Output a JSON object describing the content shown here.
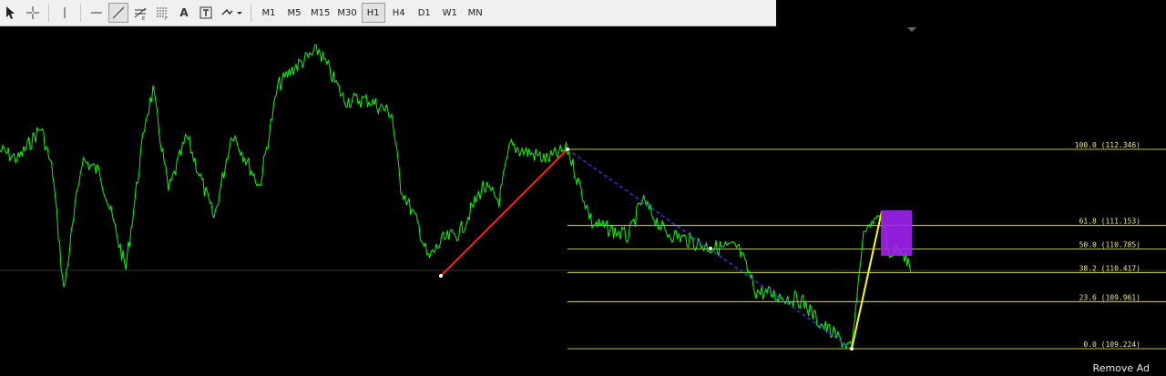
{
  "toolbar": {
    "tools": [
      {
        "name": "cursor-arrow-icon"
      },
      {
        "name": "crosshair-icon"
      },
      {
        "name": "vertical-line-icon"
      },
      {
        "name": "horizontal-line-icon"
      },
      {
        "name": "trendline-icon"
      },
      {
        "name": "fibonacci-expansion-icon"
      },
      {
        "name": "fibonacci-retracement-icon"
      },
      {
        "name": "text-tool-icon"
      },
      {
        "name": "text-label-icon"
      },
      {
        "name": "shapes-dropdown-icon"
      }
    ],
    "text_label": "A",
    "timeframes": [
      "M1",
      "M5",
      "M15",
      "M30",
      "H1",
      "H4",
      "D1",
      "W1",
      "MN"
    ],
    "active_timeframe": "H1"
  },
  "chart": {
    "background": "#000000",
    "price_line_color": "#00ff00",
    "fib_levels": [
      {
        "label": "100.0 (112.346)",
        "value": 112.346
      },
      {
        "label": "61.8 (111.153)",
        "value": 111.153
      },
      {
        "label": "50.0 (110.785)",
        "value": 110.785
      },
      {
        "label": "38.2 (110.417)",
        "value": 110.417
      },
      {
        "label": "23.6 (109.961)",
        "value": 109.961
      },
      {
        "label": "0.0 (109.224)",
        "value": 109.224
      }
    ],
    "fib_color": "#ffff66",
    "colors": {
      "trend_up": "#ff2020",
      "trend_down_dashed": "#4040ff",
      "impulse": "#ffff00",
      "zone_box": "#a020f0"
    }
  },
  "footer": {
    "remove_ad": "Remove Ad"
  }
}
